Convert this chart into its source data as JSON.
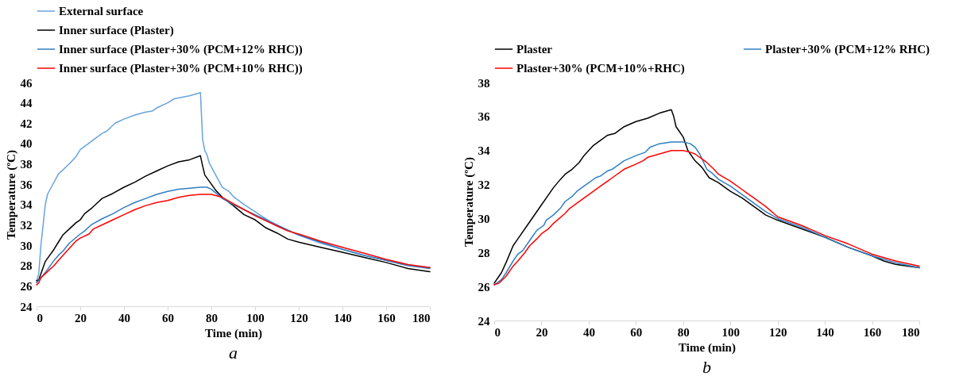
{
  "chart_data": [
    {
      "type": "line",
      "xlabel": "Time (min)",
      "ylabel": "Temperature (ºC)",
      "annotations": [
        "a"
      ],
      "xlim": [
        0,
        180
      ],
      "xticks": [
        0,
        20,
        40,
        60,
        80,
        100,
        120,
        140,
        160,
        180
      ],
      "ylim": [
        24,
        46
      ],
      "yticks": [
        24,
        26,
        28,
        30,
        32,
        34,
        36,
        38,
        40,
        42,
        44,
        46
      ],
      "grid": false,
      "legend": "top",
      "series": [
        {
          "name": "External surface",
          "color": "#67a3dc",
          "x": [
            0,
            1,
            2,
            3,
            4,
            5,
            7,
            10,
            15,
            18,
            20,
            25,
            30,
            32,
            36,
            40,
            45,
            50,
            53,
            55,
            60,
            63,
            70,
            75,
            76,
            77,
            78,
            79,
            80,
            85,
            88,
            90,
            95,
            100,
            105,
            110,
            120,
            130,
            140,
            150,
            160,
            170,
            180
          ],
          "values": [
            26.5,
            27.2,
            30,
            32,
            34,
            35,
            35.8,
            37,
            38,
            38.7,
            39.4,
            40.2,
            41,
            41.2,
            42,
            42.4,
            42.8,
            43.1,
            43.2,
            43.5,
            44,
            44.4,
            44.7,
            45,
            40.4,
            39.3,
            38.9,
            38.1,
            37.7,
            35.7,
            35.3,
            34.8,
            34,
            33.3,
            32.6,
            31.9,
            31,
            30.2,
            29.6,
            29,
            28.5,
            28,
            27.8
          ]
        },
        {
          "name": "Inner surface (Plaster)",
          "color": "#000000",
          "x": [
            0,
            1,
            2,
            3,
            4,
            6,
            8,
            10,
            12,
            15,
            18,
            20,
            22,
            25,
            28,
            30,
            35,
            40,
            45,
            50,
            55,
            60,
            65,
            70,
            75,
            76,
            77,
            80,
            82,
            85,
            90,
            95,
            100,
            105,
            110,
            115,
            120,
            130,
            140,
            150,
            160,
            170,
            180
          ],
          "values": [
            26.5,
            26.6,
            27.2,
            27.8,
            28.4,
            29,
            29.6,
            30.3,
            31,
            31.6,
            32.2,
            32.5,
            33.1,
            33.6,
            34.2,
            34.6,
            35.1,
            35.7,
            36.2,
            36.8,
            37.3,
            37.8,
            38.2,
            38.4,
            38.8,
            37.8,
            36.9,
            36,
            35.4,
            34.7,
            33.9,
            33,
            32.5,
            31.7,
            31.2,
            30.6,
            30.3,
            29.8,
            29.3,
            28.8,
            28.3,
            27.7,
            27.4
          ]
        },
        {
          "name": "Inner surface (Plaster+30% (PCM+12% RHC))",
          "color": "#2f7fc1",
          "x": [
            0,
            2,
            5,
            8,
            10,
            12,
            15,
            20,
            22,
            25,
            30,
            35,
            40,
            45,
            50,
            55,
            60,
            65,
            70,
            75,
            78,
            80,
            85,
            90,
            95,
            100,
            105,
            110,
            115,
            120,
            130,
            140,
            150,
            160,
            170,
            180
          ],
          "values": [
            26.3,
            26.8,
            27.6,
            28.5,
            29,
            29.4,
            30.2,
            31.1,
            31.4,
            32,
            32.6,
            33.1,
            33.7,
            34.2,
            34.6,
            35,
            35.3,
            35.5,
            35.6,
            35.7,
            35.7,
            35.5,
            34.6,
            34,
            33.5,
            33,
            32.5,
            32,
            31.5,
            31,
            30.3,
            29.6,
            29,
            28.5,
            28,
            27.7
          ]
        },
        {
          "name": "Inner surface (Plaster+30% (PCM+10% RHC))",
          "color": "#ff0000",
          "x": [
            0,
            1,
            2,
            5,
            8,
            10,
            15,
            18,
            20,
            24,
            26,
            30,
            35,
            40,
            45,
            50,
            55,
            60,
            65,
            70,
            75,
            80,
            85,
            90,
            95,
            100,
            105,
            110,
            115,
            120,
            130,
            140,
            150,
            160,
            170,
            180
          ],
          "values": [
            26.1,
            26.3,
            26.8,
            27.4,
            28,
            28.5,
            29.7,
            30.4,
            30.7,
            31.1,
            31.6,
            32,
            32.5,
            33,
            33.5,
            33.9,
            34.2,
            34.4,
            34.7,
            34.9,
            35,
            35,
            34.7,
            34.1,
            33.5,
            32.9,
            32.4,
            31.9,
            31.4,
            31.1,
            30.4,
            29.8,
            29.2,
            28.6,
            28.1,
            27.8
          ]
        }
      ]
    },
    {
      "type": "line",
      "xlabel": "Time (min)",
      "ylabel": "Temperature (ºC)",
      "annotations": [
        "b"
      ],
      "xlim": [
        0,
        180
      ],
      "xticks": [
        0,
        20,
        40,
        60,
        80,
        100,
        120,
        140,
        160,
        180
      ],
      "ylim": [
        24,
        38
      ],
      "yticks": [
        24,
        26,
        28,
        30,
        32,
        34,
        36,
        38
      ],
      "grid": false,
      "legend": "top",
      "series": [
        {
          "name": "Plaster",
          "color": "#000000",
          "x": [
            0,
            2,
            3,
            5,
            8,
            10,
            15,
            20,
            25,
            28,
            30,
            33,
            36,
            38,
            40,
            42,
            45,
            48,
            51,
            55,
            60,
            65,
            70,
            75,
            76,
            77,
            78,
            80,
            82,
            85,
            88,
            90,
            91,
            95,
            98,
            100,
            105,
            110,
            115,
            120,
            130,
            140,
            150,
            160,
            165,
            170,
            180
          ],
          "values": [
            26.2,
            26.6,
            26.8,
            27.4,
            28.4,
            28.8,
            29.8,
            30.8,
            31.8,
            32.3,
            32.6,
            32.9,
            33.3,
            33.7,
            34,
            34.3,
            34.6,
            34.9,
            35,
            35.4,
            35.7,
            35.9,
            36.2,
            36.4,
            36,
            35.4,
            35.2,
            34.8,
            34,
            33.4,
            33,
            32.6,
            32.4,
            32.1,
            31.8,
            31.6,
            31.2,
            30.7,
            30.2,
            29.9,
            29.4,
            28.9,
            28.3,
            27.8,
            27.5,
            27.3,
            27.1
          ]
        },
        {
          "name": "Plaster+30% (PCM+12% RHC)",
          "color": "#2f7fc1",
          "x": [
            0,
            3,
            5,
            8,
            10,
            12,
            15,
            18,
            21,
            22,
            25,
            28,
            30,
            33,
            35,
            38,
            40,
            43,
            45,
            48,
            50,
            55,
            60,
            64,
            66,
            70,
            75,
            80,
            83,
            85,
            87,
            88,
            90,
            92,
            95,
            100,
            105,
            110,
            115,
            120,
            130,
            140,
            150,
            160,
            170,
            180
          ],
          "values": [
            26.1,
            26.4,
            26.8,
            27.5,
            27.9,
            28.1,
            28.7,
            29.3,
            29.6,
            29.9,
            30.2,
            30.6,
            31,
            31.3,
            31.6,
            31.9,
            32.1,
            32.4,
            32.5,
            32.8,
            32.9,
            33.4,
            33.7,
            33.9,
            34.2,
            34.4,
            34.5,
            34.5,
            34.4,
            34.2,
            33.8,
            33.5,
            32.9,
            32.7,
            32.3,
            31.9,
            31.4,
            30.9,
            30.4,
            30,
            29.5,
            28.9,
            28.3,
            27.8,
            27.4,
            27.1
          ]
        },
        {
          "name": "Plaster+30% (PCM+10%+RHC)",
          "color": "#ff0000",
          "x": [
            0,
            2,
            5,
            8,
            10,
            13,
            15,
            18,
            20,
            23,
            25,
            30,
            32,
            35,
            40,
            45,
            48,
            50,
            55,
            60,
            63,
            65,
            70,
            75,
            80,
            83,
            85,
            88,
            90,
            93,
            95,
            100,
            105,
            107,
            110,
            115,
            120,
            130,
            140,
            150,
            160,
            170,
            180
          ],
          "values": [
            26.1,
            26.2,
            26.6,
            27.2,
            27.5,
            28,
            28.4,
            28.8,
            29.1,
            29.4,
            29.7,
            30.3,
            30.6,
            30.9,
            31.4,
            31.9,
            32.2,
            32.4,
            32.9,
            33.2,
            33.4,
            33.6,
            33.8,
            34,
            34,
            33.9,
            33.8,
            33.5,
            33.3,
            32.9,
            32.6,
            32.2,
            31.7,
            31.5,
            31.2,
            30.7,
            30.1,
            29.6,
            29,
            28.5,
            27.9,
            27.5,
            27.2
          ]
        }
      ]
    }
  ]
}
